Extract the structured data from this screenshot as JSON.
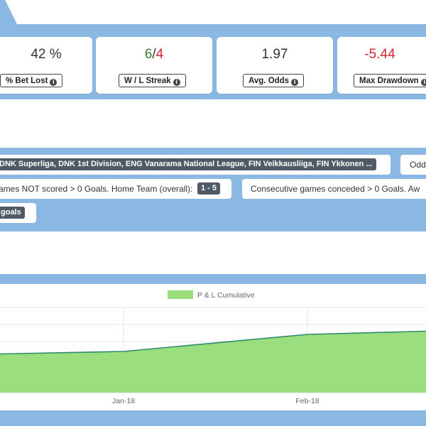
{
  "stats": [
    {
      "value": "42 %",
      "label": "% Bet Lost"
    },
    {
      "win": "6",
      "sep": "/",
      "loss": "4",
      "label": "W / L Streak"
    },
    {
      "value": "1.97",
      "label": "Avg. Odds"
    },
    {
      "value": "-5.44",
      "label": "Max Drawdown"
    }
  ],
  "filters": {
    "leagues": "DNK Superliga, DNK 1st Division, ENG Vanarama National League, FIN Veikkausliiga, FIN Ykkonen ...",
    "odds_label": "Odd",
    "not_scored_text": "ames NOT scored > 0 Goals. Home Team (overall):",
    "not_scored_range": "1 - 5",
    "conceded_text": "Consecutive games conceded > 0 Goals. Aw",
    "goals_tag": "goals"
  },
  "chart_data": {
    "type": "area",
    "legend": [
      "P & L Cumulative"
    ],
    "x_ticks": [
      "Jan-18",
      "Feb-18"
    ],
    "series": [
      {
        "name": "P & L Cumulative",
        "x": [
          "Dec-17 (partial)",
          "Jan-18",
          "Feb-18",
          "Mar-18 (partial)"
        ],
        "values": [
          0.9,
          1.6,
          6.4,
          7.3
        ]
      }
    ],
    "ylim": [
      -10,
      14
    ],
    "grid": true,
    "legend_position": "top-center",
    "colors": {
      "fill": "#9bde7e",
      "line": "#2f8a6b",
      "legend_box": "#9bde7e"
    }
  },
  "colors": {
    "band": "#8bb8e3",
    "positive": "#3a7d2c",
    "negative": "#d0282f"
  }
}
